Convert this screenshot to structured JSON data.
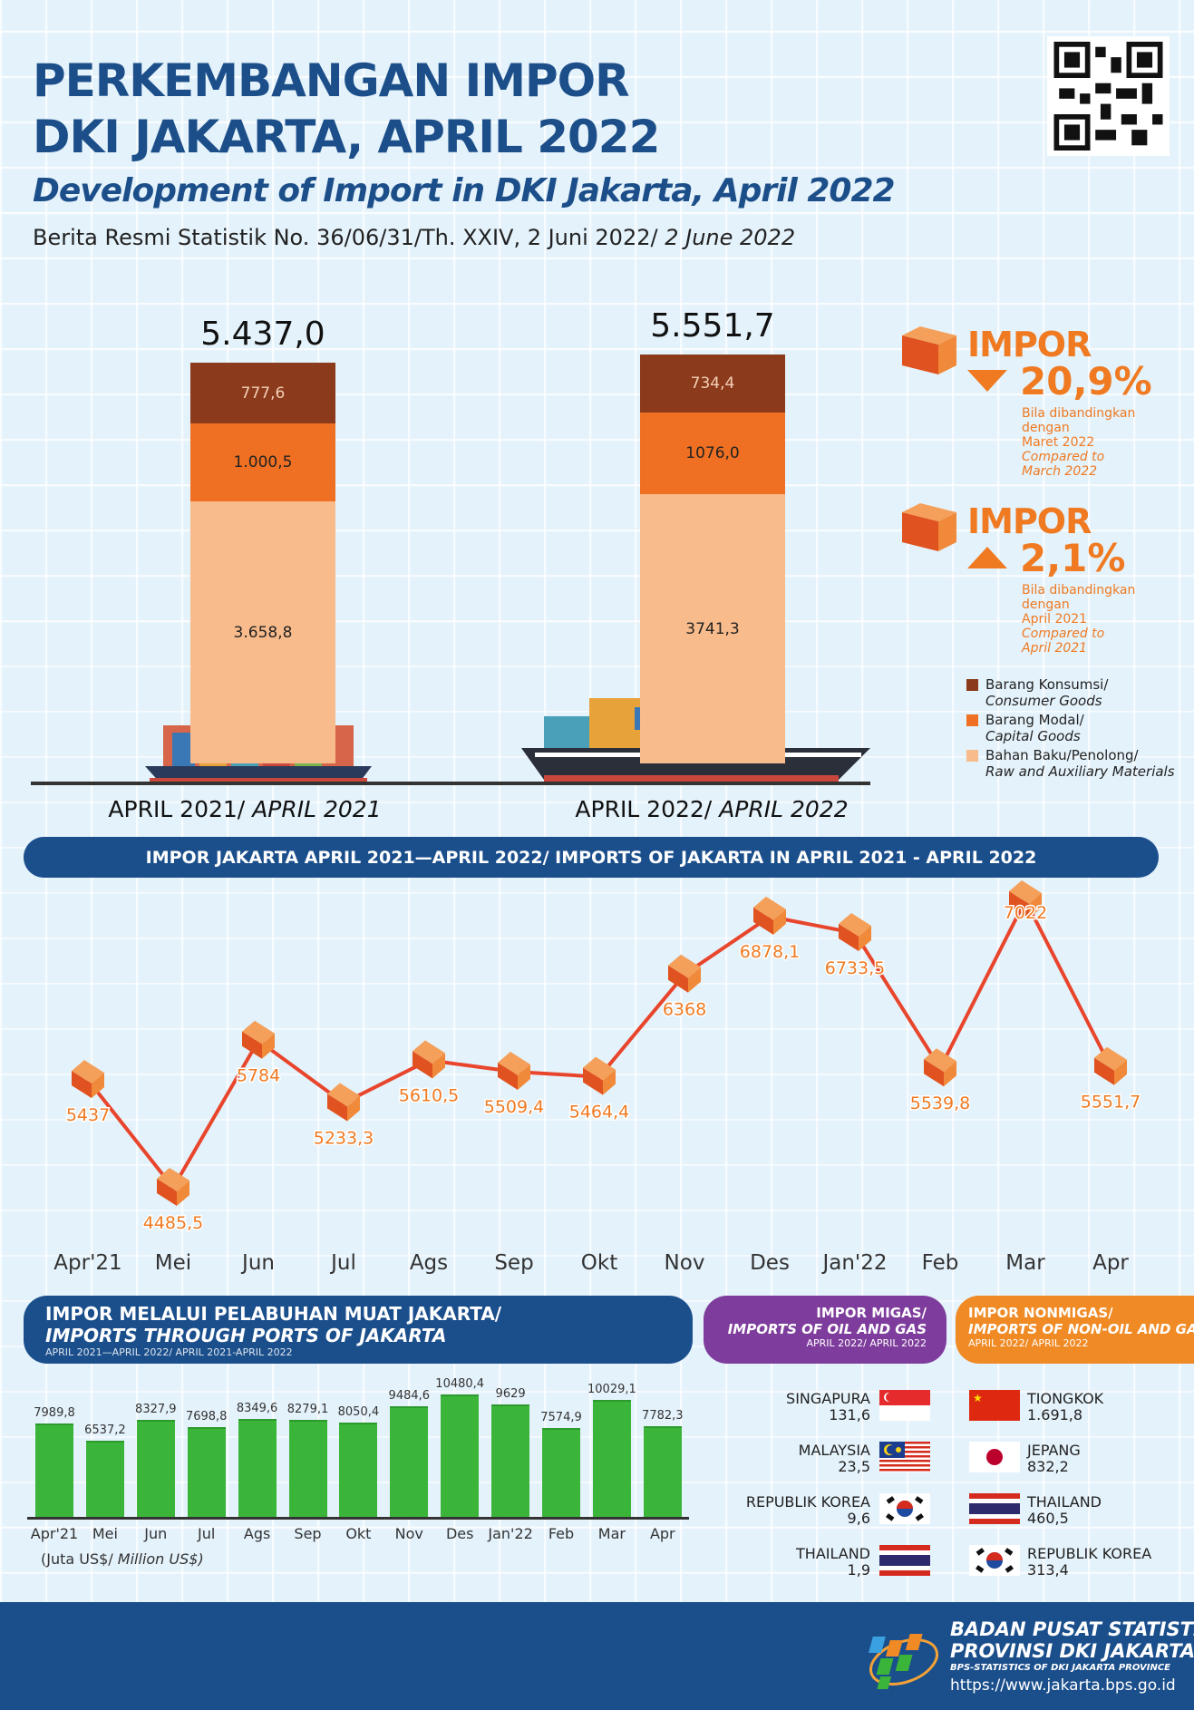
{
  "header": {
    "title_line1": "PERKEMBANGAN IMPOR",
    "title_line2": "DKI JAKARTA, APRIL 2022",
    "subtitle": "Development of Import in DKI Jakarta, April 2022",
    "release": "Berita Resmi Statistik No. 36/06/31/Th. XXIV, 2 Juni 2022/",
    "release_en": "2 June 2022"
  },
  "stacked": {
    "periods": [
      {
        "total": "5.437,0",
        "consumer": "777,6",
        "capital": "1.000,5",
        "raw": "3.658,8",
        "label": "APRIL 2021/",
        "label_en": "APRIL 2021"
      },
      {
        "total": "5.551,7",
        "consumer": "734,4",
        "capital": "1076,0",
        "raw": "3741,3",
        "label": "APRIL 2022/",
        "label_en": "APRIL 2022"
      }
    ],
    "legend": [
      {
        "id": "Barang Konsumsi/",
        "en": "Consumer Goods",
        "color": "#8b3a1c"
      },
      {
        "id": "Barang Modal/",
        "en": "Capital Goods",
        "color": "#ef7022"
      },
      {
        "id": "Bahan Baku/Penolong/",
        "en": "Raw and Auxiliary Materials",
        "color": "#f8bb8c"
      }
    ]
  },
  "changes": [
    {
      "label": "IMPOR",
      "direction": "down",
      "value": "20,9%",
      "l1": "Bila dibandingkan",
      "l2": "dengan",
      "l3": "Maret 2022",
      "en1": "Compared to",
      "en2": "March 2022"
    },
    {
      "label": "IMPOR",
      "direction": "up",
      "value": "2,1%",
      "l1": "Bila dibandingkan",
      "l2": "dengan",
      "l3": "April 2021",
      "en1": "Compared to",
      "en2": "April 2021"
    }
  ],
  "line_banner": "IMPOR JAKARTA APRIL 2021—APRIL 2022/ IMPORTS OF JAKARTA IN APRIL 2021 - APRIL 2022",
  "ports_banner": {
    "l1": "IMPOR MELALUI PELABUHAN MUAT JAKARTA/",
    "l2": "IMPORTS THROUGH PORTS OF JAKARTA",
    "l3": "APRIL 2021—APRIL 2022/ APRIL 2021-APRIL 2022"
  },
  "migas_banner": {
    "l1": "IMPOR MIGAS/",
    "l2": "IMPORTS OF OIL AND GAS",
    "l3": "APRIL 2022/ APRIL 2022"
  },
  "nonmigas_banner": {
    "l1": "IMPOR NONMIGAS/",
    "l2": "IMPORTS OF NON-OIL AND GAS",
    "l3": "APRIL 2022/ APRIL 2022"
  },
  "chart_data": [
    {
      "type": "line",
      "title": "IMPOR JAKARTA APRIL 2021—APRIL 2022/ IMPORTS OF JAKARTA IN APRIL 2021 - APRIL 2022",
      "categories": [
        "Apr'21",
        "Mei",
        "Jun",
        "Jul",
        "Ags",
        "Sep",
        "Okt",
        "Nov",
        "Des",
        "Jan'22",
        "Feb",
        "Mar",
        "Apr"
      ],
      "values": [
        5437,
        4485.5,
        5784,
        5233.3,
        5610.5,
        5509.4,
        5464.4,
        6368,
        6878.1,
        6733.5,
        5539.8,
        7022,
        5551.7
      ],
      "labels": [
        "5437",
        "4485,5",
        "5784",
        "5233,3",
        "5610,5",
        "5509,4",
        "5464,4",
        "6368",
        "6878,1",
        "6733,5",
        "5539,8",
        "7022",
        "5551,7"
      ],
      "color": "#e8452c",
      "grid": false
    },
    {
      "type": "bar",
      "title": "IMPOR MELALUI PELABUHAN MUAT JAKARTA/ IMPORTS THROUGH PORTS OF JAKARTA",
      "categories": [
        "Apr'21",
        "Mei",
        "Jun",
        "Jul",
        "Ags",
        "Sep",
        "Okt",
        "Nov",
        "Des",
        "Jan'22",
        "Feb",
        "Mar",
        "Apr"
      ],
      "values": [
        7989.8,
        6537.2,
        8327.9,
        7698.8,
        8349.6,
        8279.1,
        8050.4,
        9484.6,
        10480.4,
        9629,
        7574.9,
        10029.1,
        7782.3
      ],
      "labels": [
        "7989,8",
        "6537,2",
        "8327,9",
        "7698,8",
        "8349,6",
        "8279,1",
        "8050,4",
        "9484,6",
        "10480,4",
        "9629",
        "7574,9",
        "10029,1",
        "7782,3"
      ],
      "unit": "(Juta US$/",
      "unit_en": "Million US$)",
      "color": "#3ab53a"
    }
  ],
  "migas": [
    {
      "country": "SINGAPURA",
      "value": "131,6",
      "flag": "sg"
    },
    {
      "country": "MALAYSIA",
      "value": "23,5",
      "flag": "my"
    },
    {
      "country": "REPUBLIK KOREA",
      "value": "9,6",
      "flag": "kr"
    },
    {
      "country": "THAILAND",
      "value": "1,9",
      "flag": "th"
    }
  ],
  "nonmigas": [
    {
      "country": "TIONGKOK",
      "value": "1.691,8",
      "flag": "cn"
    },
    {
      "country": "JEPANG",
      "value": "832,2",
      "flag": "jp"
    },
    {
      "country": "THAILAND",
      "value": "460,5",
      "flag": "th"
    },
    {
      "country": "REPUBLIK KOREA",
      "value": "313,4",
      "flag": "kr"
    }
  ],
  "footer": {
    "org1": "BADAN PUSAT STATISTIK",
    "org2": "PROVINSI DKI JAKARTA",
    "org3": "BPS-STATISTICS OF DKI JAKARTA PROVINCE",
    "url": "https://www.jakarta.bps.go.id"
  }
}
